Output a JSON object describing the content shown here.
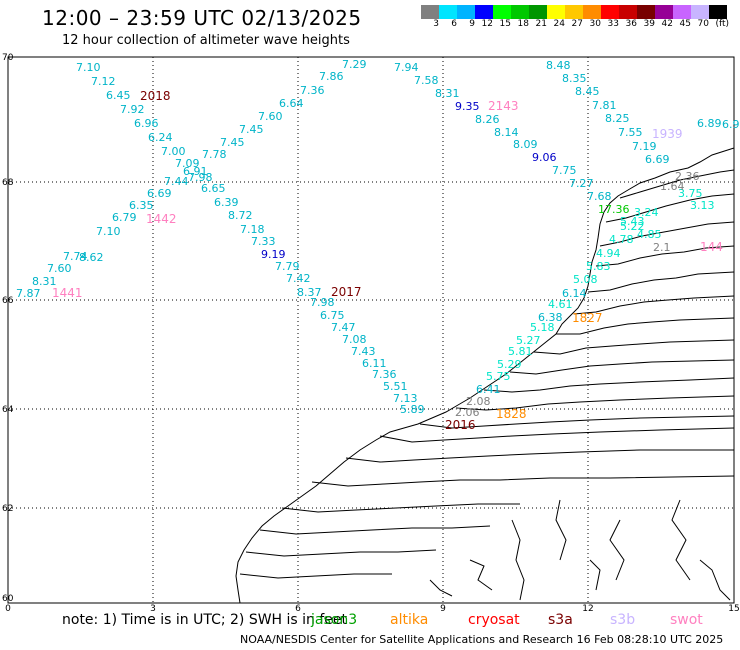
{
  "header": {
    "title": "12:00 – 23:59 UTC 02/13/2025",
    "subtitle": "12 hour collection of altimeter wave heights"
  },
  "colorbar": {
    "colors": [
      "#808080",
      "#00e5ff",
      "#00b4ff",
      "#0000ff",
      "#00ff00",
      "#00c800",
      "#009600",
      "#ffff00",
      "#ffc800",
      "#ff8c00",
      "#ff0000",
      "#c80000",
      "#780000",
      "#960096",
      "#c864ff",
      "#c8b4ff",
      "#000000"
    ],
    "labels": [
      "3",
      "6",
      "9",
      "12",
      "15",
      "18",
      "21",
      "24",
      "27",
      "30",
      "33",
      "36",
      "39",
      "42",
      "45",
      "70"
    ],
    "unit": "(ft)"
  },
  "axes": {
    "x_ticks": [
      "0",
      "3",
      "6",
      "9",
      "12",
      "15"
    ],
    "y_ticks": [
      "70",
      "68",
      "66",
      "64",
      "62",
      "60"
    ]
  },
  "tracks": [
    {
      "id": "2018",
      "color": "#7a0000",
      "label_pos": "start"
    },
    {
      "id": "1442",
      "color": "#ff80c0"
    },
    {
      "id": "1441",
      "color": "#ff80c0"
    },
    {
      "id": "2017",
      "color": "#7a0000"
    },
    {
      "id": "2016",
      "color": "#7a0000"
    },
    {
      "id": "1828",
      "color": "#ff8c00"
    },
    {
      "id": "1827",
      "color": "#ff8c00"
    },
    {
      "id": "2143",
      "color": "#ff80c0"
    },
    {
      "id": "1939",
      "color": "#c8b4ff"
    },
    {
      "id": "144",
      "color": "#ff80c0"
    }
  ],
  "wave_labels": [
    {
      "t": "7.10",
      "c": "#00b4c8"
    },
    {
      "t": "7.12",
      "c": "#00b4c8"
    },
    {
      "t": "6.45",
      "c": "#00b4c8"
    },
    {
      "t": "7.92",
      "c": "#00b4c8"
    },
    {
      "t": "6.96",
      "c": "#00b4c8"
    },
    {
      "t": "6.24",
      "c": "#00b4c8"
    },
    {
      "t": "7.00",
      "c": "#00b4c8"
    },
    {
      "t": "7.09",
      "c": "#00b4c8"
    },
    {
      "t": "6.91",
      "c": "#00b4c8"
    },
    {
      "t": "7.44",
      "c": "#00b4c8"
    },
    {
      "t": "7.98",
      "c": "#00b4c8"
    },
    {
      "t": "6.69",
      "c": "#00b4c8"
    },
    {
      "t": "6.65",
      "c": "#00b4c8"
    },
    {
      "t": "6.35",
      "c": "#00b4c8"
    },
    {
      "t": "6.39",
      "c": "#00b4c8"
    },
    {
      "t": "6.79",
      "c": "#00b4c8"
    },
    {
      "t": "8.72",
      "c": "#00b4c8"
    },
    {
      "t": "7.10",
      "c": "#00b4c8"
    },
    {
      "t": "7.18",
      "c": "#00b4c8"
    },
    {
      "t": "8.62",
      "c": "#00b4c8"
    },
    {
      "t": "7.33",
      "c": "#00b4c8"
    },
    {
      "t": "7.74",
      "c": "#00b4c8"
    },
    {
      "t": "9.19",
      "c": "#0000c8"
    },
    {
      "t": "7.60",
      "c": "#00b4c8"
    },
    {
      "t": "7.79",
      "c": "#00b4c8"
    },
    {
      "t": "8.31",
      "c": "#00b4c8"
    },
    {
      "t": "7.42",
      "c": "#00b4c8"
    },
    {
      "t": "7.87",
      "c": "#00b4c8"
    },
    {
      "t": "8.37",
      "c": "#00b4c8"
    },
    {
      "t": "7.98",
      "c": "#00b4c8"
    },
    {
      "t": "6.75",
      "c": "#00b4c8"
    },
    {
      "t": "7.47",
      "c": "#00b4c8"
    },
    {
      "t": "7.08",
      "c": "#00b4c8"
    },
    {
      "t": "7.43",
      "c": "#00b4c8"
    },
    {
      "t": "6.11",
      "c": "#00b4c8"
    },
    {
      "t": "7.36",
      "c": "#00b4c8"
    },
    {
      "t": "5.51",
      "c": "#00b4c8"
    },
    {
      "t": "7.13",
      "c": "#00b4c8"
    },
    {
      "t": "5.89",
      "c": "#00b4c8"
    },
    {
      "t": "7.29",
      "c": "#00b4c8"
    },
    {
      "t": "7.86",
      "c": "#00b4c8"
    },
    {
      "t": "7.36",
      "c": "#00b4c8"
    },
    {
      "t": "6.64",
      "c": "#00b4c8"
    },
    {
      "t": "7.60",
      "c": "#00b4c8"
    },
    {
      "t": "7.45",
      "c": "#00b4c8"
    },
    {
      "t": "7.45",
      "c": "#00b4c8"
    },
    {
      "t": "7.78",
      "c": "#00b4c8"
    },
    {
      "t": "7.94",
      "c": "#00b4c8"
    },
    {
      "t": "7.58",
      "c": "#00b4c8"
    },
    {
      "t": "8.31",
      "c": "#00b4c8"
    },
    {
      "t": "9.35",
      "c": "#0000c8"
    },
    {
      "t": "8.26",
      "c": "#00b4c8"
    },
    {
      "t": "8.14",
      "c": "#00b4c8"
    },
    {
      "t": "8.09",
      "c": "#00b4c8"
    },
    {
      "t": "9.06",
      "c": "#0000c8"
    },
    {
      "t": "7.75",
      "c": "#00b4c8"
    },
    {
      "t": "7.27",
      "c": "#00b4c8"
    },
    {
      "t": "8.48",
      "c": "#00b4c8"
    },
    {
      "t": "8.35",
      "c": "#00b4c8"
    },
    {
      "t": "8.45",
      "c": "#00b4c8"
    },
    {
      "t": "7.81",
      "c": "#00b4c8"
    },
    {
      "t": "8.25",
      "c": "#00b4c8"
    },
    {
      "t": "7.55",
      "c": "#00b4c8"
    },
    {
      "t": "7.19",
      "c": "#00b4c8"
    },
    {
      "t": "6.69",
      "c": "#00b4c8"
    },
    {
      "t": "6.89",
      "c": "#00b4c8"
    },
    {
      "t": "6.9",
      "c": "#00b4c8"
    },
    {
      "t": "7.68",
      "c": "#00b4c8"
    },
    {
      "t": "17.36",
      "c": "#00c800"
    },
    {
      "t": "5.43",
      "c": "#00e5c8"
    },
    {
      "t": "5.22",
      "c": "#00e5c8"
    },
    {
      "t": "4.85",
      "c": "#00e5c8"
    },
    {
      "t": "3.24",
      "c": "#00e5c8"
    },
    {
      "t": "3.75",
      "c": "#00e5c8"
    },
    {
      "t": "3.13",
      "c": "#00e5c8"
    },
    {
      "t": "4.78",
      "c": "#00e5c8"
    },
    {
      "t": "4.94",
      "c": "#00e5c8"
    },
    {
      "t": "5.83",
      "c": "#00e5c8"
    },
    {
      "t": "5.08",
      "c": "#00e5c8"
    },
    {
      "t": "6.14",
      "c": "#00b4c8"
    },
    {
      "t": "4.61",
      "c": "#00e5c8"
    },
    {
      "t": "6.38",
      "c": "#00b4c8"
    },
    {
      "t": "5.18",
      "c": "#00e5c8"
    },
    {
      "t": "5.27",
      "c": "#00e5c8"
    },
    {
      "t": "5.81",
      "c": "#00e5c8"
    },
    {
      "t": "5.29",
      "c": "#00e5c8"
    },
    {
      "t": "5.75",
      "c": "#00e5c8"
    },
    {
      "t": "6.41",
      "c": "#00b4c8"
    },
    {
      "t": "2.08",
      "c": "#808080"
    },
    {
      "t": "2.06",
      "c": "#808080"
    },
    {
      "t": "2.36",
      "c": "#808080"
    },
    {
      "t": "1.64",
      "c": "#808080"
    },
    {
      "t": "2.1",
      "c": "#808080"
    }
  ],
  "footer": {
    "note": "note: 1) Time is in UTC; 2) SWH is in feet",
    "legend": [
      {
        "label": "jason3",
        "color": "#00a000"
      },
      {
        "label": "altika",
        "color": "#ff8c00"
      },
      {
        "label": "cryosat",
        "color": "#ff0000"
      },
      {
        "label": "s3a",
        "color": "#7a0000"
      },
      {
        "label": "s3b",
        "color": "#c8b4ff"
      },
      {
        "label": "swot",
        "color": "#ff80c0"
      }
    ],
    "credit": "NOAA/NESDIS Center for Satellite Applications and Research    16 Feb 08:28:10 UTC 2025"
  }
}
